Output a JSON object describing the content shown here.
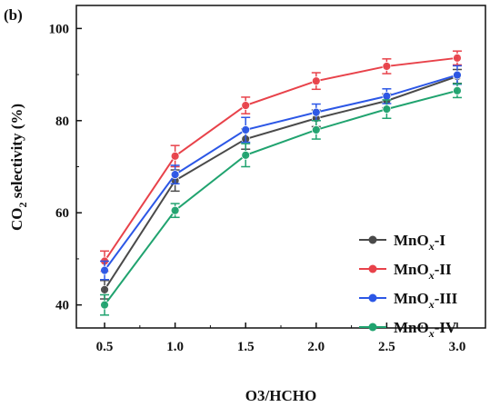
{
  "panel_label": "(b)",
  "colors": {
    "MnOx-I": "#4a4a4a",
    "MnOx-II": "#e8424a",
    "MnOx-III": "#2c57e6",
    "MnOx-IV": "#20a36f",
    "axis": "#111111"
  },
  "legend": {
    "items": [
      {
        "base": "MnO",
        "sub": "x",
        "suffix": "-I",
        "series": "MnOx-I"
      },
      {
        "base": "MnO",
        "sub": "x",
        "suffix": "-II",
        "series": "MnOx-II"
      },
      {
        "base": "MnO",
        "sub": "x",
        "suffix": "-III",
        "series": "MnOx-III"
      },
      {
        "base": "MnO",
        "sub": "x",
        "suffix": "-IV",
        "series": "MnOx-IV"
      }
    ]
  },
  "axes": {
    "x_title": "O3/HCHO",
    "y_title_pre": "CO",
    "y_title_sub": "2",
    "y_title_post": " selectivity (%)"
  },
  "chart_data": {
    "type": "line",
    "x": [
      0.5,
      1.0,
      1.5,
      2.0,
      2.5,
      3.0
    ],
    "x_tick_labels": [
      "0.5",
      "1.0",
      "1.5",
      "2.0",
      "2.5",
      "3.0"
    ],
    "xlim": [
      0.3,
      3.2
    ],
    "ylim": [
      35,
      105
    ],
    "y_ticks": [
      40,
      60,
      80,
      100
    ],
    "y_tick_labels": [
      "40",
      "60",
      "80",
      "100"
    ],
    "xlabel": "O3/HCHO",
    "ylabel": "CO2 selectivity (%)",
    "legend_position": "bottom-right",
    "grid": false,
    "series": [
      {
        "name": "MnOx-I",
        "values": [
          43.3,
          67.0,
          76.0,
          80.5,
          84.3,
          89.6
        ],
        "errors": [
          2.0,
          2.3,
          2.2,
          1.8,
          1.5,
          1.5
        ]
      },
      {
        "name": "MnOx-II",
        "values": [
          49.5,
          72.3,
          83.3,
          88.6,
          91.8,
          93.6
        ],
        "errors": [
          2.2,
          2.3,
          1.8,
          1.8,
          1.6,
          1.5
        ]
      },
      {
        "name": "MnOx-III",
        "values": [
          47.5,
          68.3,
          78.0,
          81.8,
          85.3,
          89.9
        ],
        "errors": [
          2.0,
          2.0,
          2.7,
          1.8,
          1.6,
          2.0
        ]
      },
      {
        "name": "MnOx-IV",
        "values": [
          40.0,
          60.5,
          72.5,
          78.0,
          82.5,
          86.5
        ],
        "errors": [
          2.2,
          1.5,
          2.5,
          2.0,
          2.0,
          1.5
        ]
      }
    ]
  }
}
